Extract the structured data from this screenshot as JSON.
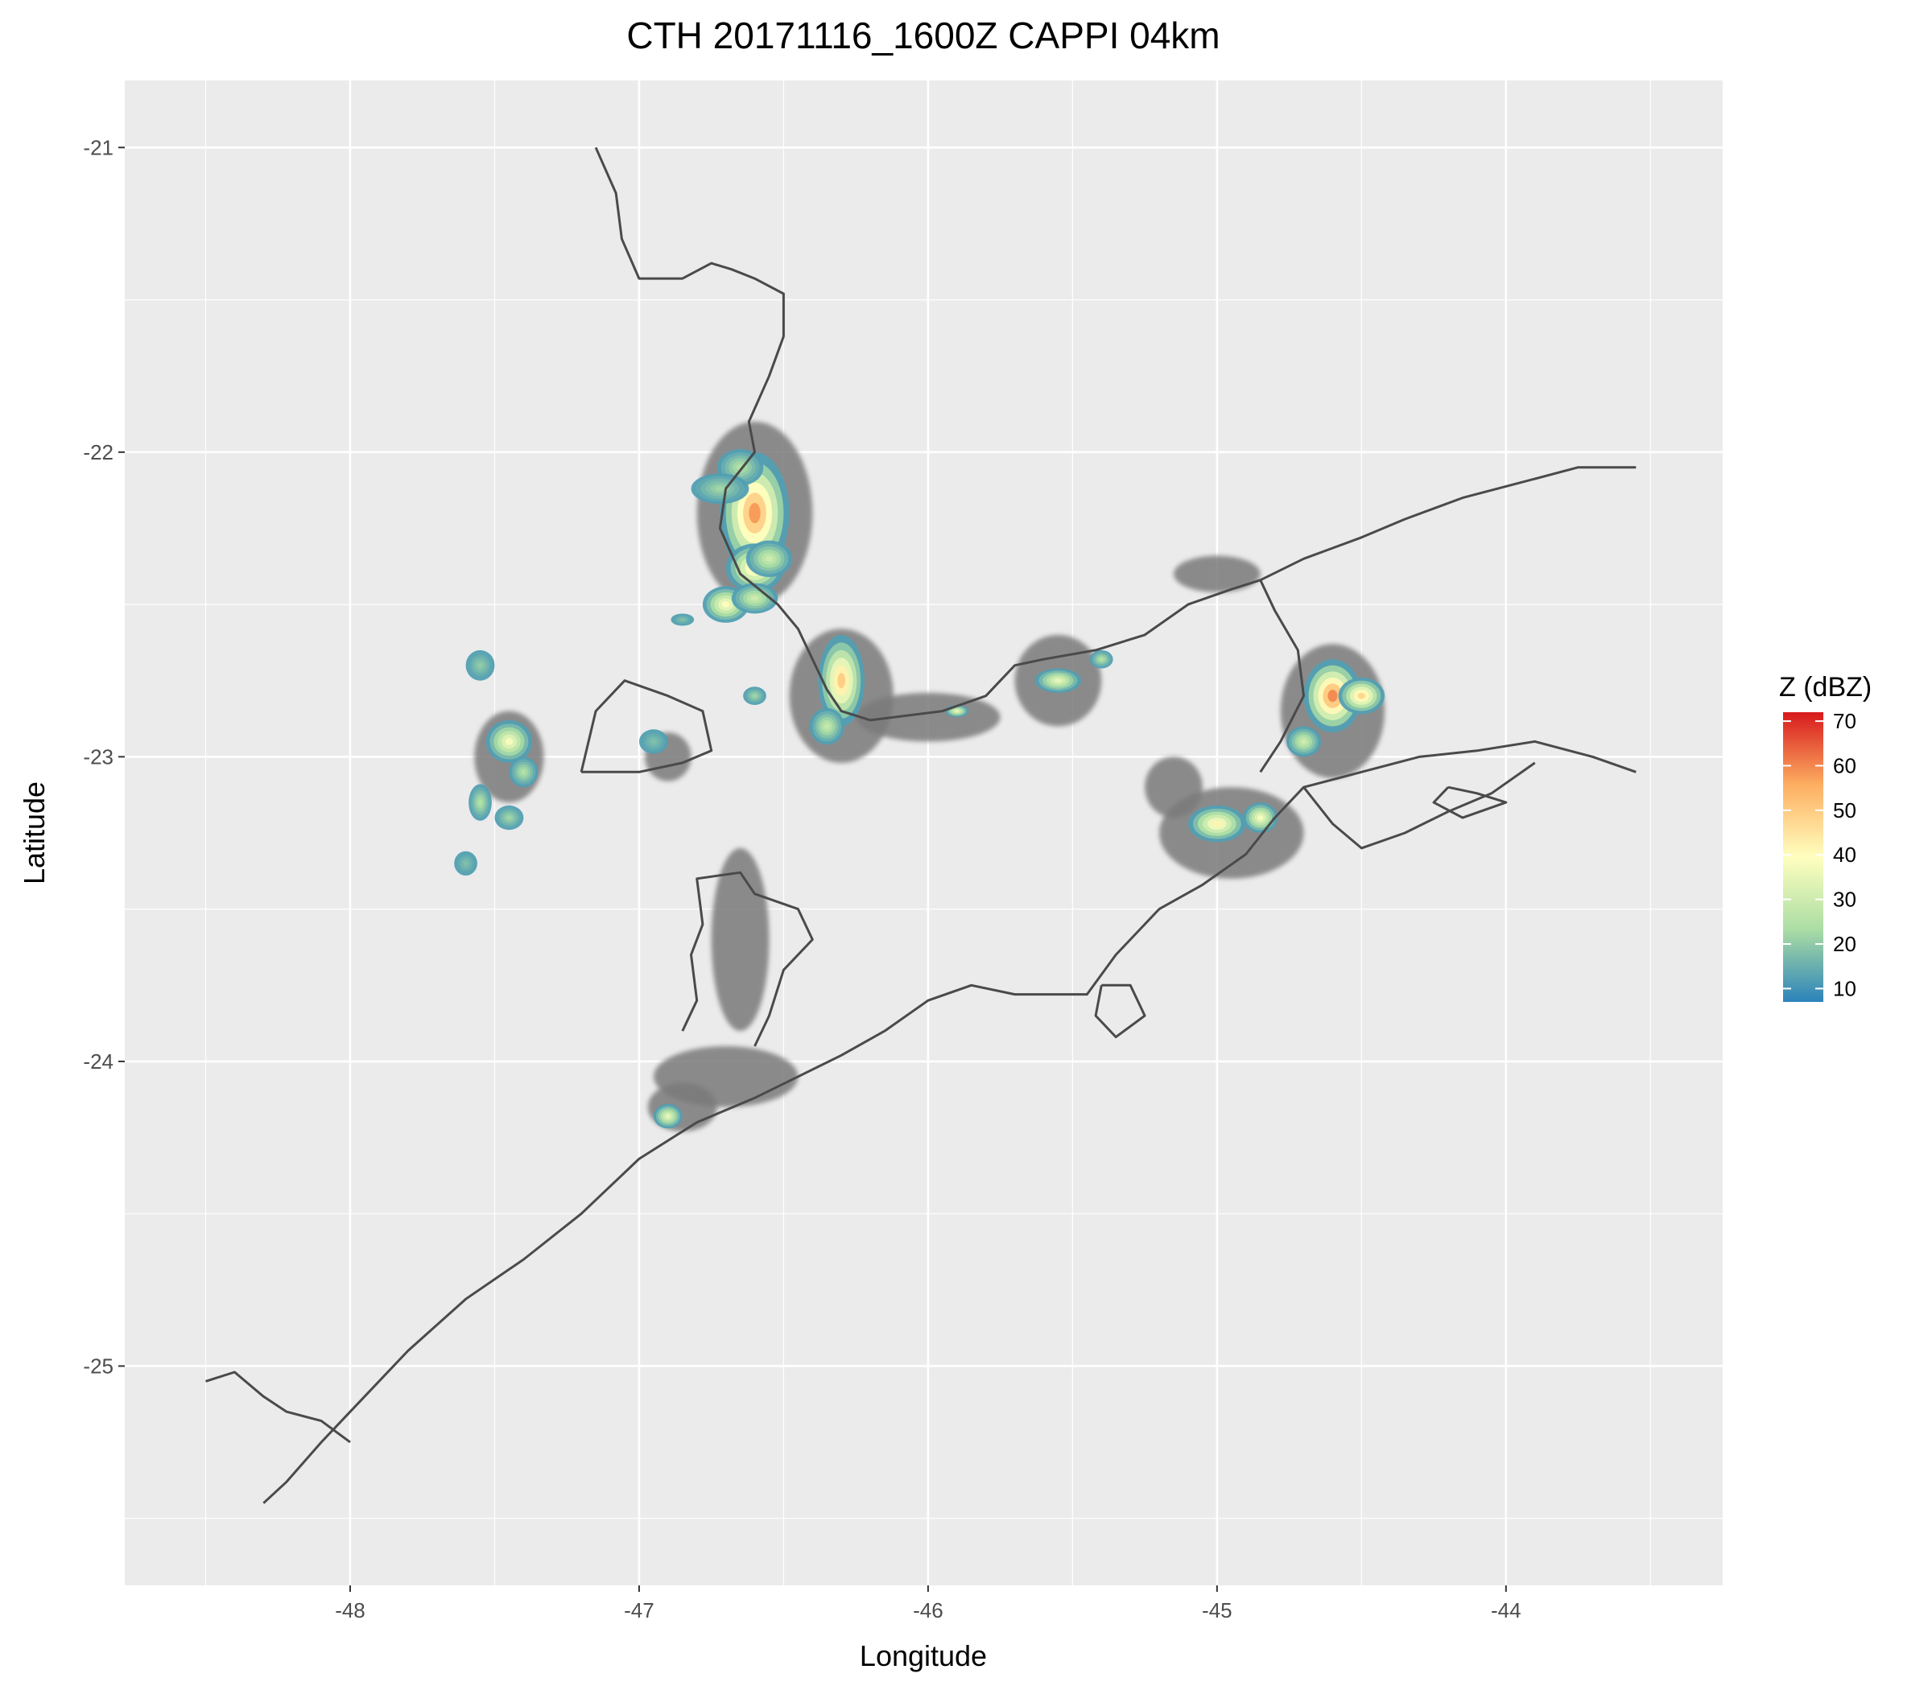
{
  "title": "CTH 20171116_1600Z  CAPPI 04km",
  "xlabel": "Longitude",
  "ylabel": "Latitude",
  "x_ticks": [
    {
      "value": -48,
      "label": "-48"
    },
    {
      "value": -47,
      "label": "-47"
    },
    {
      "value": -46,
      "label": "-46"
    },
    {
      "value": -45,
      "label": "-45"
    },
    {
      "value": -44,
      "label": "-44"
    }
  ],
  "y_ticks": [
    {
      "value": -21,
      "label": "-21"
    },
    {
      "value": -22,
      "label": "-22"
    },
    {
      "value": -23,
      "label": "-23"
    },
    {
      "value": -24,
      "label": "-24"
    },
    {
      "value": -25,
      "label": "-25"
    }
  ],
  "xlim": [
    -48.78,
    -43.25
  ],
  "ylim": [
    -25.72,
    -20.78
  ],
  "legend": {
    "title": "Z (dBZ)",
    "ticks": [
      {
        "value": 10,
        "label": "10"
      },
      {
        "value": 20,
        "label": "20"
      },
      {
        "value": 30,
        "label": "30"
      },
      {
        "value": 40,
        "label": "40"
      },
      {
        "value": 50,
        "label": "50"
      },
      {
        "value": 60,
        "label": "60"
      },
      {
        "value": 70,
        "label": "70"
      }
    ],
    "range": [
      7,
      72
    ],
    "colors": [
      "#2b83ba",
      "#abdda4",
      "#ffffbf",
      "#fdae61",
      "#d7191c"
    ]
  },
  "colors": {
    "panel_bg": "#ebebeb",
    "grid": "#ffffff",
    "coast": "#4a4a4a",
    "clutter": "#7a7a7a"
  },
  "coastlines": [
    {
      "name": "state-border-north",
      "points": [
        [
          -47.15,
          -21.0
        ],
        [
          -47.08,
          -21.15
        ],
        [
          -47.06,
          -21.3
        ],
        [
          -47.0,
          -21.43
        ],
        [
          -46.85,
          -21.43
        ],
        [
          -46.75,
          -21.38
        ],
        [
          -46.68,
          -21.4
        ],
        [
          -46.6,
          -21.43
        ],
        [
          -46.5,
          -21.48
        ],
        [
          -46.5,
          -21.62
        ],
        [
          -46.55,
          -21.75
        ],
        [
          -46.62,
          -21.9
        ],
        [
          -46.6,
          -22.0
        ],
        [
          -46.7,
          -22.12
        ],
        [
          -46.72,
          -22.25
        ],
        [
          -46.65,
          -22.4
        ],
        [
          -46.52,
          -22.5
        ],
        [
          -46.45,
          -22.58
        ],
        [
          -46.4,
          -22.68
        ],
        [
          -46.35,
          -22.78
        ],
        [
          -46.3,
          -22.85
        ],
        [
          -46.2,
          -22.88
        ]
      ]
    },
    {
      "name": "state-border-east",
      "points": [
        [
          -46.2,
          -22.88
        ],
        [
          -45.95,
          -22.85
        ],
        [
          -45.8,
          -22.8
        ],
        [
          -45.7,
          -22.7
        ],
        [
          -45.6,
          -22.68
        ],
        [
          -45.42,
          -22.65
        ],
        [
          -45.25,
          -22.6
        ],
        [
          -45.1,
          -22.5
        ],
        [
          -44.95,
          -22.45
        ],
        [
          -44.85,
          -22.42
        ],
        [
          -44.7,
          -22.35
        ],
        [
          -44.5,
          -22.28
        ],
        [
          -44.35,
          -22.22
        ],
        [
          -44.15,
          -22.15
        ],
        [
          -43.95,
          -22.1
        ],
        [
          -43.75,
          -22.05
        ],
        [
          -43.55,
          -22.05
        ]
      ]
    },
    {
      "name": "rj-interior",
      "points": [
        [
          -44.85,
          -22.42
        ],
        [
          -44.8,
          -22.52
        ],
        [
          -44.72,
          -22.65
        ],
        [
          -44.7,
          -22.8
        ],
        [
          -44.78,
          -22.95
        ],
        [
          -44.85,
          -23.05
        ]
      ]
    },
    {
      "name": "rj-coast",
      "points": [
        [
          -43.55,
          -23.05
        ],
        [
          -43.7,
          -23.0
        ],
        [
          -43.9,
          -22.95
        ],
        [
          -44.1,
          -22.98
        ],
        [
          -44.3,
          -23.0
        ],
        [
          -44.5,
          -23.05
        ],
        [
          -44.7,
          -23.1
        ],
        [
          -44.8,
          -23.2
        ],
        [
          -44.9,
          -23.32
        ],
        [
          -45.05,
          -23.42
        ],
        [
          -45.2,
          -23.5
        ],
        [
          -45.35,
          -23.65
        ],
        [
          -45.45,
          -23.78
        ],
        [
          -45.55,
          -23.78
        ],
        [
          -45.7,
          -23.78
        ],
        [
          -45.85,
          -23.75
        ],
        [
          -46.0,
          -23.8
        ],
        [
          -46.15,
          -23.9
        ],
        [
          -46.3,
          -23.98
        ],
        [
          -46.45,
          -24.05
        ],
        [
          -46.6,
          -24.12
        ],
        [
          -46.8,
          -24.2
        ],
        [
          -47.0,
          -24.32
        ],
        [
          -47.2,
          -24.5
        ],
        [
          -47.4,
          -24.65
        ],
        [
          -47.6,
          -24.78
        ],
        [
          -47.8,
          -24.95
        ],
        [
          -47.95,
          -25.1
        ],
        [
          -48.1,
          -25.25
        ],
        [
          -48.22,
          -25.38
        ],
        [
          -48.3,
          -25.45
        ]
      ]
    },
    {
      "name": "rj-bay-coast",
      "points": [
        [
          -44.7,
          -23.1
        ],
        [
          -44.6,
          -23.22
        ],
        [
          -44.5,
          -23.3
        ],
        [
          -44.35,
          -23.25
        ],
        [
          -44.2,
          -23.18
        ],
        [
          -44.05,
          -23.12
        ],
        [
          -43.9,
          -23.02
        ]
      ]
    },
    {
      "name": "sp-south-border",
      "points": [
        [
          -48.0,
          -25.25
        ],
        [
          -48.1,
          -25.18
        ],
        [
          -48.22,
          -25.15
        ],
        [
          -48.3,
          -25.1
        ],
        [
          -48.4,
          -25.02
        ],
        [
          -48.5,
          -25.05
        ]
      ]
    },
    {
      "name": "sp-inner-loop",
      "points": [
        [
          -46.85,
          -23.9
        ],
        [
          -46.8,
          -23.8
        ],
        [
          -46.82,
          -23.65
        ],
        [
          -46.78,
          -23.55
        ],
        [
          -46.8,
          -23.4
        ],
        [
          -46.65,
          -23.38
        ],
        [
          -46.6,
          -23.45
        ],
        [
          -46.45,
          -23.5
        ],
        [
          -46.4,
          -23.6
        ],
        [
          -46.5,
          -23.7
        ],
        [
          -46.55,
          -23.85
        ],
        [
          -46.6,
          -23.95
        ]
      ]
    },
    {
      "name": "sp-west-loop",
      "points": [
        [
          -47.2,
          -23.05
        ],
        [
          -47.15,
          -22.85
        ],
        [
          -47.05,
          -22.75
        ],
        [
          -46.9,
          -22.8
        ],
        [
          -46.78,
          -22.85
        ],
        [
          -46.75,
          -22.98
        ],
        [
          -46.85,
          -23.02
        ],
        [
          -47.0,
          -23.05
        ],
        [
          -47.2,
          -23.05
        ]
      ]
    },
    {
      "name": "ilhabela",
      "points": [
        [
          -45.4,
          -23.75
        ],
        [
          -45.3,
          -23.75
        ],
        [
          -45.25,
          -23.85
        ],
        [
          -45.35,
          -23.92
        ],
        [
          -45.42,
          -23.85
        ],
        [
          -45.4,
          -23.75
        ]
      ]
    },
    {
      "name": "ilha-grande",
      "points": [
        [
          -44.2,
          -23.1
        ],
        [
          -44.1,
          -23.12
        ],
        [
          -44.0,
          -23.15
        ],
        [
          -44.15,
          -23.2
        ],
        [
          -44.25,
          -23.15
        ],
        [
          -44.2,
          -23.1
        ]
      ]
    }
  ],
  "echoes": [
    {
      "lon": -46.6,
      "lat": -22.2,
      "dbz": 58,
      "rx": 0.12,
      "ry": 0.2
    },
    {
      "lon": -46.65,
      "lat": -22.05,
      "dbz": 25,
      "rx": 0.08,
      "ry": 0.06
    },
    {
      "lon": -46.72,
      "lat": -22.12,
      "dbz": 22,
      "rx": 0.1,
      "ry": 0.05
    },
    {
      "lon": -46.6,
      "lat": -22.38,
      "dbz": 45,
      "rx": 0.1,
      "ry": 0.08
    },
    {
      "lon": -46.7,
      "lat": -22.5,
      "dbz": 40,
      "rx": 0.08,
      "ry": 0.06
    },
    {
      "lon": -46.55,
      "lat": -22.35,
      "dbz": 30,
      "rx": 0.08,
      "ry": 0.06
    },
    {
      "lon": -46.3,
      "lat": -22.75,
      "dbz": 50,
      "rx": 0.08,
      "ry": 0.15
    },
    {
      "lon": -46.35,
      "lat": -22.9,
      "dbz": 28,
      "rx": 0.06,
      "ry": 0.06
    },
    {
      "lon": -46.6,
      "lat": -22.48,
      "dbz": 30,
      "rx": 0.08,
      "ry": 0.05
    },
    {
      "lon": -45.55,
      "lat": -22.75,
      "dbz": 35,
      "rx": 0.08,
      "ry": 0.04
    },
    {
      "lon": -45.4,
      "lat": -22.68,
      "dbz": 25,
      "rx": 0.04,
      "ry": 0.03
    },
    {
      "lon": -44.6,
      "lat": -22.8,
      "dbz": 60,
      "rx": 0.1,
      "ry": 0.12
    },
    {
      "lon": -44.5,
      "lat": -22.8,
      "dbz": 48,
      "rx": 0.08,
      "ry": 0.06
    },
    {
      "lon": -44.7,
      "lat": -22.95,
      "dbz": 30,
      "rx": 0.06,
      "ry": 0.05
    },
    {
      "lon": -45.0,
      "lat": -23.22,
      "dbz": 42,
      "rx": 0.1,
      "ry": 0.06
    },
    {
      "lon": -44.85,
      "lat": -23.2,
      "dbz": 38,
      "rx": 0.06,
      "ry": 0.05
    },
    {
      "lon": -47.45,
      "lat": -22.95,
      "dbz": 38,
      "rx": 0.08,
      "ry": 0.07
    },
    {
      "lon": -47.4,
      "lat": -23.05,
      "dbz": 25,
      "rx": 0.05,
      "ry": 0.05
    },
    {
      "lon": -47.55,
      "lat": -23.15,
      "dbz": 25,
      "rx": 0.04,
      "ry": 0.06
    },
    {
      "lon": -47.45,
      "lat": -23.2,
      "dbz": 22,
      "rx": 0.05,
      "ry": 0.04
    },
    {
      "lon": -47.6,
      "lat": -23.35,
      "dbz": 18,
      "rx": 0.04,
      "ry": 0.04
    },
    {
      "lon": -47.55,
      "lat": -22.7,
      "dbz": 20,
      "rx": 0.05,
      "ry": 0.05
    },
    {
      "lon": -46.9,
      "lat": -24.18,
      "dbz": 35,
      "rx": 0.05,
      "ry": 0.04
    },
    {
      "lon": -45.9,
      "lat": -22.85,
      "dbz": 35,
      "rx": 0.04,
      "ry": 0.02
    },
    {
      "lon": -46.95,
      "lat": -22.95,
      "dbz": 18,
      "rx": 0.05,
      "ry": 0.04
    },
    {
      "lon": -46.6,
      "lat": -22.8,
      "dbz": 22,
      "rx": 0.04,
      "ry": 0.03
    },
    {
      "lon": -46.85,
      "lat": -22.55,
      "dbz": 18,
      "rx": 0.04,
      "ry": 0.02
    }
  ],
  "clutter": [
    {
      "lon": -46.6,
      "lat": -22.2,
      "rx": 0.2,
      "ry": 0.3
    },
    {
      "lon": -46.3,
      "lat": -22.8,
      "rx": 0.18,
      "ry": 0.22
    },
    {
      "lon": -46.0,
      "lat": -22.87,
      "rx": 0.25,
      "ry": 0.08
    },
    {
      "lon": -45.55,
      "lat": -22.75,
      "rx": 0.15,
      "ry": 0.15
    },
    {
      "lon": -45.0,
      "lat": -22.4,
      "rx": 0.15,
      "ry": 0.06
    },
    {
      "lon": -44.6,
      "lat": -22.85,
      "rx": 0.18,
      "ry": 0.22
    },
    {
      "lon": -44.95,
      "lat": -23.25,
      "rx": 0.25,
      "ry": 0.15
    },
    {
      "lon": -45.15,
      "lat": -23.1,
      "rx": 0.1,
      "ry": 0.1
    },
    {
      "lon": -46.65,
      "lat": -23.6,
      "rx": 0.1,
      "ry": 0.3
    },
    {
      "lon": -46.7,
      "lat": -24.05,
      "rx": 0.25,
      "ry": 0.1
    },
    {
      "lon": -47.45,
      "lat": -23.0,
      "rx": 0.12,
      "ry": 0.15
    },
    {
      "lon": -46.9,
      "lat": -23.0,
      "rx": 0.08,
      "ry": 0.08
    },
    {
      "lon": -46.85,
      "lat": -24.15,
      "rx": 0.12,
      "ry": 0.08
    }
  ]
}
